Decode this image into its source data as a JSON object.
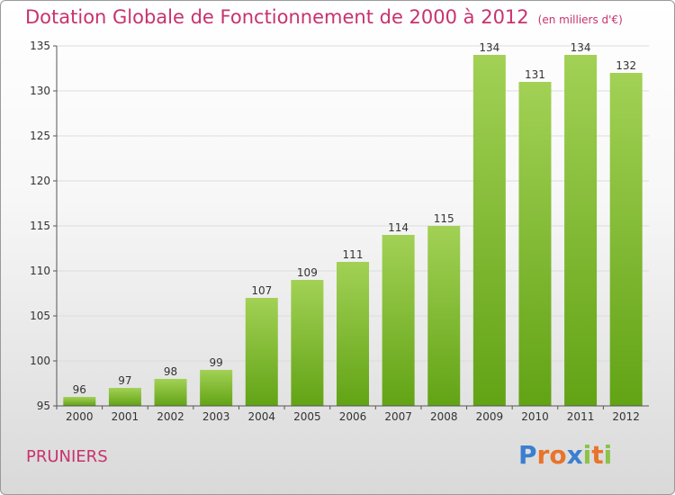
{
  "header": {
    "title": "Dotation Globale de Fonctionnement de 2000 à 2012",
    "subtitle": "(en milliers d'€)"
  },
  "footer": {
    "commune": "PRUNIERS",
    "logo": "Proxiti"
  },
  "colors": {
    "title": "#c8326e",
    "bar_light": "#a2d155",
    "bar_dark": "#62a315"
  },
  "chart_data": {
    "type": "bar",
    "title": "Dotation Globale de Fonctionnement de 2000 à 2012",
    "subtitle": "(en milliers d'€)",
    "categories": [
      "2000",
      "2001",
      "2002",
      "2003",
      "2004",
      "2005",
      "2006",
      "2007",
      "2008",
      "2009",
      "2010",
      "2011",
      "2012"
    ],
    "values": [
      96,
      97,
      98,
      99,
      107,
      109,
      111,
      114,
      115,
      134,
      131,
      134,
      132
    ],
    "ylim": [
      95,
      135
    ],
    "yticks": [
      95,
      100,
      105,
      110,
      115,
      120,
      125,
      130,
      135
    ],
    "grid": true,
    "legend": "none"
  }
}
